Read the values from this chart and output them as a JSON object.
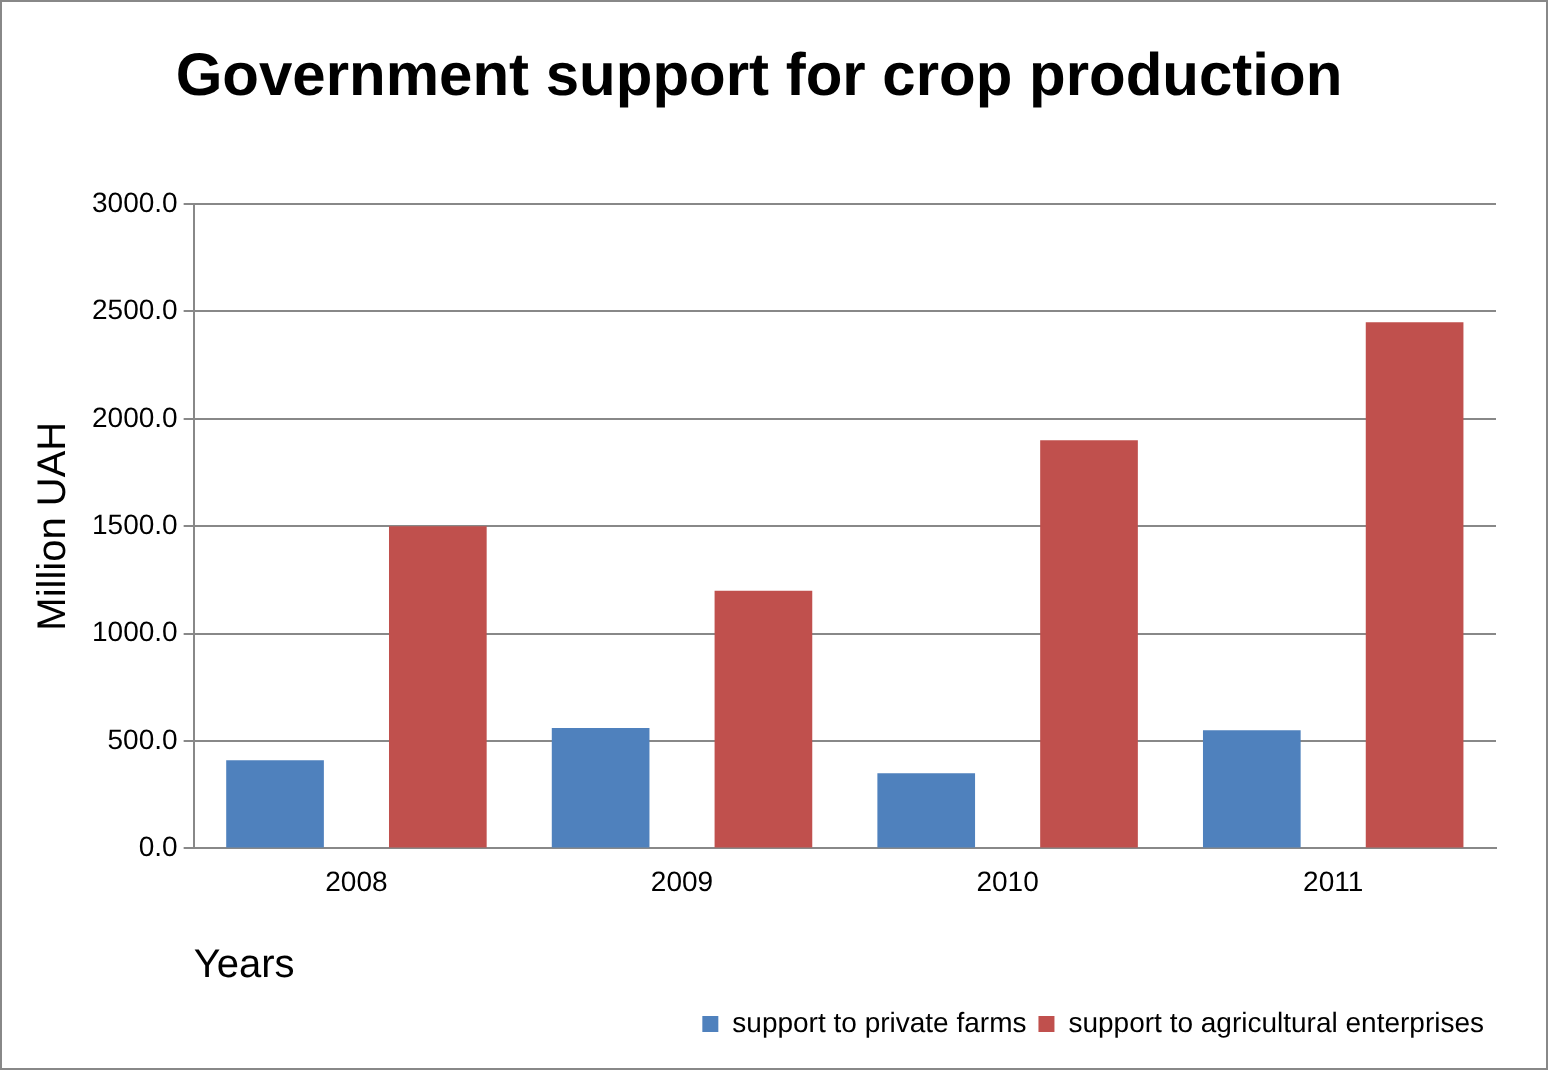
{
  "chart_data": {
    "type": "bar",
    "title": "Government support for crop production",
    "xlabel": "Years",
    "ylabel": "Million UAH",
    "categories": [
      "2008",
      "2009",
      "2010",
      "2011"
    ],
    "series": [
      {
        "name": "support to private farms",
        "color": "#4f81bd",
        "values": [
          410,
          560,
          350,
          550
        ]
      },
      {
        "name": "support to agricultural enterprises",
        "color": "#c0504d",
        "values": [
          1500,
          1200,
          1900,
          2450
        ]
      }
    ],
    "ylim": [
      0,
      3000
    ],
    "yticks": [
      {
        "value": 0,
        "label": "0.0"
      },
      {
        "value": 500,
        "label": "500.0"
      },
      {
        "value": 1000,
        "label": "1000.0"
      },
      {
        "value": 1500,
        "label": "1500.0"
      },
      {
        "value": 2000,
        "label": "2000.0"
      },
      {
        "value": 2500,
        "label": "2500.0"
      },
      {
        "value": 3000,
        "label": "3000.0"
      }
    ],
    "grid": "y",
    "legend": "bottom right"
  }
}
